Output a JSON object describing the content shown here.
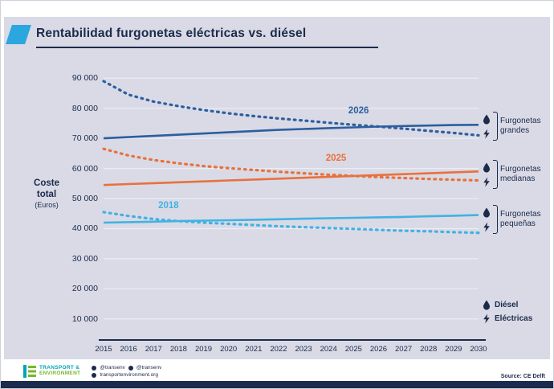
{
  "page": {
    "title": "Rentabilidad furgonetas eléctricas vs. diésel"
  },
  "chart_data": {
    "type": "line",
    "title": "Rentabilidad furgonetas eléctricas vs. diésel",
    "ylabel_lines": [
      "Coste",
      "total",
      "(Euros)"
    ],
    "x": [
      2015,
      2016,
      2017,
      2018,
      2019,
      2020,
      2021,
      2022,
      2023,
      2024,
      2025,
      2026,
      2027,
      2028,
      2029,
      2030
    ],
    "xtick_labels": [
      "2015",
      "2016",
      "2017",
      "2018",
      "2019",
      "2020",
      "2021",
      "2022",
      "2023",
      "2024",
      "2025",
      "2026",
      "2027",
      "2028",
      "2029",
      "2030"
    ],
    "yticks": [
      10000,
      20000,
      30000,
      40000,
      50000,
      60000,
      70000,
      80000,
      90000
    ],
    "ytick_labels": [
      "10 000",
      "20 000",
      "30 000",
      "40 000",
      "50 000",
      "60 000",
      "70 000",
      "80 000",
      "90 000"
    ],
    "ylim": [
      3000,
      93000
    ],
    "grid": true,
    "legend_position": "right",
    "series": [
      {
        "name": "Furgonetas grandes - Diésel",
        "fuel": "diesel",
        "style": "solid",
        "color": "#2c5f9e",
        "values": [
          70000,
          70400,
          70800,
          71200,
          71600,
          72000,
          72400,
          72800,
          73100,
          73400,
          73650,
          73900,
          74100,
          74250,
          74400,
          74500
        ]
      },
      {
        "name": "Furgonetas grandes - Eléctricas",
        "fuel": "electric",
        "style": "dashed",
        "color": "#2c5f9e",
        "values": [
          89000,
          84500,
          82200,
          80700,
          79400,
          78300,
          77400,
          76600,
          75900,
          75200,
          74500,
          73900,
          73200,
          72500,
          71800,
          71000
        ]
      },
      {
        "name": "Furgonetas medianas - Diésel",
        "fuel": "diesel",
        "style": "solid",
        "color": "#e8713c",
        "values": [
          54500,
          54800,
          55100,
          55400,
          55700,
          56000,
          56300,
          56600,
          56900,
          57200,
          57500,
          57800,
          58100,
          58400,
          58700,
          59000
        ]
      },
      {
        "name": "Furgonetas medianas - Eléctricas",
        "fuel": "electric",
        "style": "dashed",
        "color": "#e8713c",
        "values": [
          66500,
          64300,
          62800,
          61700,
          60800,
          60100,
          59500,
          58900,
          58400,
          57900,
          57500,
          57100,
          56800,
          56500,
          56250,
          56000
        ]
      },
      {
        "name": "Furgonetas pequeñas - Diésel",
        "fuel": "diesel",
        "style": "solid",
        "color": "#41b2e2",
        "values": [
          42000,
          42150,
          42300,
          42500,
          42650,
          42800,
          42950,
          43100,
          43300,
          43450,
          43600,
          43750,
          43900,
          44100,
          44300,
          44500
        ]
      },
      {
        "name": "Furgonetas pequeñas - Eléctricas",
        "fuel": "electric",
        "style": "dashed",
        "color": "#41b2e2",
        "values": [
          45500,
          44200,
          43200,
          42500,
          42000,
          41600,
          41200,
          40800,
          40500,
          40200,
          39900,
          39600,
          39300,
          39100,
          38800,
          38600
        ]
      }
    ],
    "annotations": [
      {
        "text": "2026",
        "x": 2025.2,
        "y": 78300,
        "color": "#2c5f9e"
      },
      {
        "text": "2025",
        "x": 2024.3,
        "y": 62500,
        "color": "#e8713c"
      },
      {
        "text": "2018",
        "x": 2017.6,
        "y": 46800,
        "color": "#41b2e2"
      }
    ]
  },
  "legend_groups": {
    "grandes": {
      "line1": "Furgonetas",
      "line2": "grandes"
    },
    "medianas": {
      "line1": "Furgonetas",
      "line2": "medianas"
    },
    "pequenas": {
      "line1": "Furgonetas",
      "line2": "pequeñas"
    }
  },
  "fuel_legend": {
    "diesel": "Diésel",
    "electric": "Eléctricas"
  },
  "theme": {
    "navy": "#1c2b4a",
    "card_bg": "#d9dae6",
    "accent_blue": "#2ba7df",
    "grid": "#ebedf5",
    "logo_teal": "#00a5b3",
    "logo_green": "#76b82a"
  },
  "footer": {
    "logo_line1": "TRANSPORT &",
    "logo_line2": "ENVIRONMENT",
    "twitter_handle": "@transenv",
    "facebook_handle": "@transenv",
    "website": "transportenvironment.org",
    "source": "Source: CE Delft"
  }
}
